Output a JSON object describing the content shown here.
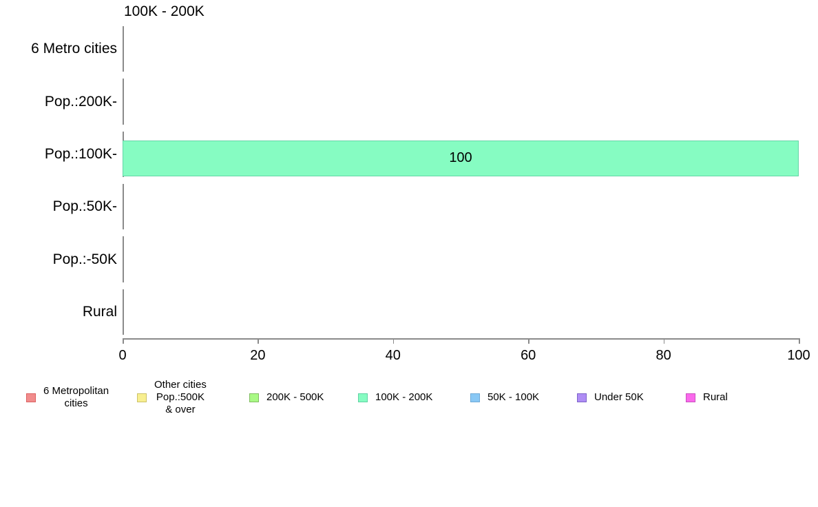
{
  "chart_data": {
    "type": "bar",
    "orientation": "horizontal",
    "title": "100K - 200K",
    "categories": [
      "6 Metro cities",
      "Pop.:200K-",
      "Pop.:100K-",
      "Pop.:50K-",
      "Pop.:-50K",
      "Rural"
    ],
    "values": [
      0,
      0,
      100,
      0,
      0,
      0
    ],
    "bar_value_labels": [
      "",
      "",
      "100",
      "",
      "",
      ""
    ],
    "xlabel": "",
    "ylabel": "",
    "xlim": [
      0,
      100
    ],
    "x_ticks": [
      "0",
      "20",
      "40",
      "60",
      "80",
      "100"
    ],
    "grid": false,
    "colors": {
      "bar_fill": "#86FCC2",
      "bar_border": "#63D5A6",
      "axis_line": "#8A8A8A",
      "text": "#000000"
    },
    "legend": {
      "position": "bottom",
      "items": [
        {
          "label": "6 Metropolitan\ncities",
          "fill": "#F18C8C",
          "border": "#DC6060"
        },
        {
          "label": "Other cities\nPop.:500K\n& over",
          "fill": "#F8EF90",
          "border": "#CBC169"
        },
        {
          "label": "200K - 500K",
          "fill": "#A9F985",
          "border": "#82BC63"
        },
        {
          "label": "100K - 200K",
          "fill": "#86FCC2",
          "border": "#60D1A3"
        },
        {
          "label": "50K - 100K",
          "fill": "#89C8F5",
          "border": "#6FA9D6"
        },
        {
          "label": "Under 50K",
          "fill": "#AF8DF5",
          "border": "#7C62C9"
        },
        {
          "label": "Rural",
          "fill": "#FA69EC",
          "border": "#C94FBE"
        }
      ]
    }
  }
}
